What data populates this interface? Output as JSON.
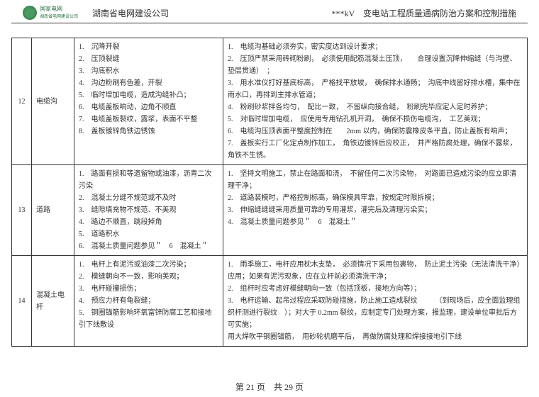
{
  "header": {
    "logo_name": "国家电网",
    "logo_sub": "湖南省电网建设公司",
    "left_title": "湖南省电网建设公司",
    "right_title": "***kV　变电站工程质量通病防治方案和控制措施"
  },
  "colors": {
    "border": "#333333",
    "text": "#333333",
    "logo": "#2a7040",
    "background": "#ffffff"
  },
  "rows": [
    {
      "num": "12",
      "name": "电缆沟",
      "issues": [
        "1.　沉降开裂",
        "2.　压顶裂缝",
        "3.　沟底积水",
        "4.　沟边粉刷有色差，开裂",
        "5.　临时增加电缆，造成沟缝补凸；",
        "6.　电缆盖板响动，边角不顺直",
        "7.　电缆盖板裂纹，露浆，表面不平整",
        "8.　盖板镀锌角铁边锈蚀"
      ],
      "measures": [
        "1.　电缆沟基础必须夯实，密实度达到设计要求；",
        "2.　压顶严禁采用砖砌粉刷，　必须使用配筋混凝土压顶，　　合理设置沉降伸缩缝（与沟壁、垫层贯通）　；",
        "3.　用水准仪打好基底标高，　严格找平放坡，　确保排水通畅；　沟底中线留好排水槽，集中在雨水口，再排到主排水管道；",
        "4.　粉刷砂浆拌各均匀，　配比一致，　不留纵向接合缝，　粉刷完毕应定人定时养护；",
        "5.　对临时增加电缆，　应使用专用钻孔机开洞，　确保不损伤电缆沟，　工艺美观；",
        "6.　电缆沟压顶表面平整度控制在　　2mm 以内，确保防震橡皮条平直，防止盖板有响声；",
        "7.　盖板实行工厂化定点制作加工，　角铁边镀锌后应校正，　并严格防腐处理，确保不露浆，角铁不生锈。"
      ]
    },
    {
      "num": "13",
      "name": "道路",
      "issues": [
        "1.　路面有损和等遗留物或油漆，沥青二次污染",
        "2.　混凝土分缝不规范或不及时",
        "3.　缝隙填充物不规范、不美观",
        "4.　路边不顺直，跳段掉角",
        "5.　道路积水",
        "6.　混凝土质量问题参见＂　6　混凝土＂"
      ],
      "measures": [
        "1.　坚持文明施工，禁止在路面和浇，　不留任何二次污染物，　对路面已造成污染的应立即清理干净；",
        "2.　道路装模时，严格控制标高，确保模具牢靠，按规定时限拆模；",
        "3.　伸缩缝缝缝采用质量可靠的专用灌浆，灌完后及清理污染实；",
        "4.　混凝土质量问题参见＂　6　混凝土＂"
      ]
    },
    {
      "num": "14",
      "name": "混凝土电杆",
      "issues": [
        "1.　电杆上有泥污或油漆二次污染；",
        "2.　模缝朝向不一致，影响美观；",
        "3.　电杆碰撞损伤；",
        "4.　预应力杆有龟裂缝；",
        "5.　钢圈锚筋影响环氧富锌防腐工艺和接地引下线敷设"
      ],
      "measures": [
        "1.　雨季施工，电杆应用枕木支垫，　必须情况下采用包裹物，　防止泥土污染（无法清洗干净）应用；如果有泥污现象，应在立杆前必须清洗干净；",
        "2.　组杆时应考虑好模缝朝向一致（包括顶板，接地方向等）；",
        "3.　电杆运输、起吊过程应采取防碰措施，防止施工造成裂纹　　　（到现场后，应全面监理组织杆测进行裂纹　）；对大于 0.2mm 裂纹，应制定专门处理方案，报监理，建设单位审批后方可实施；",
        "用大焊吹平钢圈锚筋，　用砂轮机磨平后，　再做防腐处理和焊接接地引下线"
      ]
    }
  ],
  "footer": {
    "page": "第 21 页　共 29 页"
  }
}
